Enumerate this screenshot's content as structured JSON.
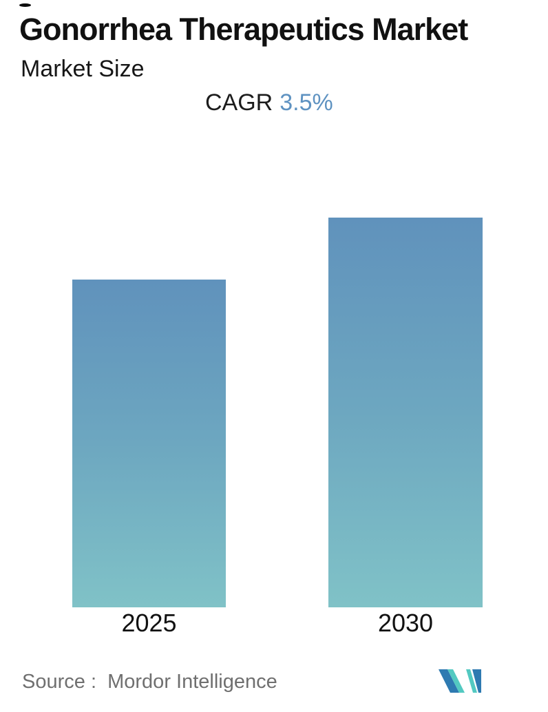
{
  "page": {
    "background": "#ffffff"
  },
  "header": {
    "title": "Gonorrhea Therapeutics Market",
    "subtitle": "Market Size",
    "cagr_label": "CAGR",
    "cagr_value": "3.5%",
    "cagr_value_color": "#5e92c1"
  },
  "chart_data": {
    "type": "bar",
    "title": "Gonorrhea Therapeutics Market",
    "subtitle": "Market Size",
    "annotation": "CAGR 3.5%",
    "cagr_percent": 3.5,
    "categories": [
      "2025",
      "2030"
    ],
    "values": [
      1.0,
      1.19
    ],
    "values_unit": "relative market size (no numeric axis shown)",
    "xlabel": "",
    "ylabel": "",
    "grid": false,
    "legend": "none",
    "bar_gradient_top": "#6092bc",
    "bar_gradient_mid": "#6da7c0",
    "bar_gradient_bottom": "#80c2c7"
  },
  "footer": {
    "source_text": "Source :  Mordor Intelligence",
    "logo_blue": "#2e7ab1",
    "logo_teal": "#53c9c1"
  }
}
